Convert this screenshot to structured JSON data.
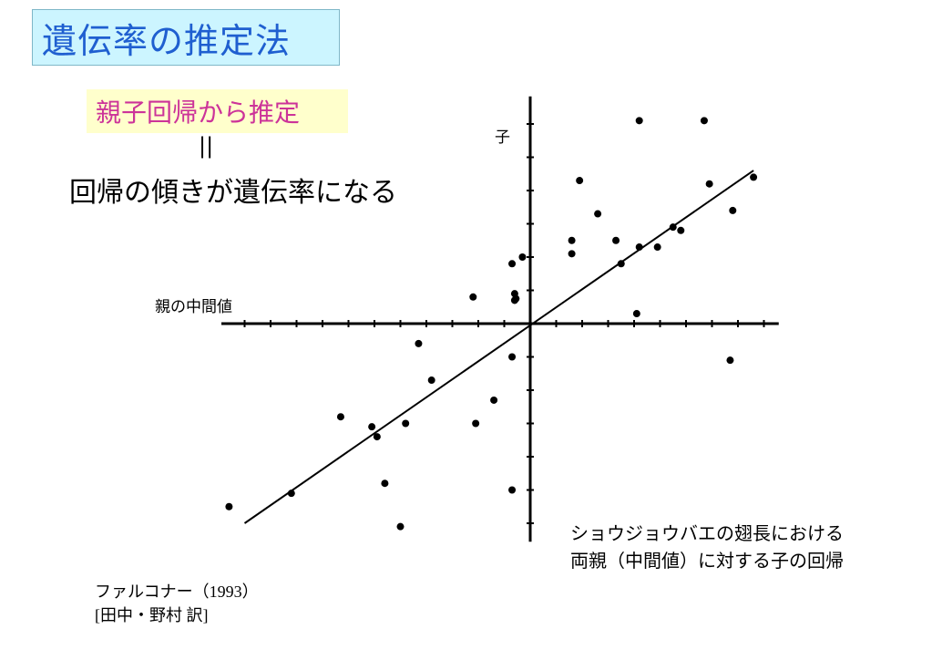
{
  "slide": {
    "title": "遺伝率の推定法",
    "subtitle": "親子回帰から推定",
    "equals_sign": "||",
    "statement": "回帰の傾きが遺伝率になる",
    "caption_lines": [
      "ショウジョウバエの翅長における",
      "両親（中間値）に対する子の回帰"
    ],
    "source_lines": [
      "ファルコナー（1993）",
      "[田中・野村 訳]"
    ]
  },
  "colors": {
    "title_bg": "#ccf5ff",
    "title_text": "#1f5fd0",
    "subtitle_bg": "#ffffcc",
    "subtitle_text": "#cc3399"
  },
  "chart_data": {
    "type": "scatter",
    "xlabel": "親の中間値",
    "ylabel": "子",
    "xlim": [
      -12,
      9.5
    ],
    "ylim": [
      -6.5,
      6.5
    ],
    "grid": false,
    "x_ticks": [
      -11,
      -10,
      -9,
      -8,
      -7,
      -6,
      -5,
      -4,
      -3,
      -2,
      -1,
      1,
      2,
      3,
      4,
      5,
      6,
      7,
      8,
      9
    ],
    "y_ticks": [
      -6,
      -5,
      -4,
      -3,
      -2,
      -1,
      1,
      2,
      3,
      4,
      5,
      6
    ],
    "points": [
      {
        "x": -11.6,
        "y": -5.5
      },
      {
        "x": -9.2,
        "y": -5.1
      },
      {
        "x": -7.3,
        "y": -2.8
      },
      {
        "x": -6.1,
        "y": -3.1
      },
      {
        "x": -5.9,
        "y": -3.4
      },
      {
        "x": -5.6,
        "y": -4.8
      },
      {
        "x": -5.0,
        "y": -6.1
      },
      {
        "x": -4.8,
        "y": -3.0
      },
      {
        "x": -4.3,
        "y": -0.6
      },
      {
        "x": -3.8,
        "y": -1.7
      },
      {
        "x": -2.1,
        "y": -3.0
      },
      {
        "x": -1.4,
        "y": -2.3
      },
      {
        "x": -2.2,
        "y": 0.8
      },
      {
        "x": -0.7,
        "y": 1.8
      },
      {
        "x": -0.6,
        "y": 0.9
      },
      {
        "x": -0.6,
        "y": 0.7
      },
      {
        "x": -0.55,
        "y": 0.75
      },
      {
        "x": -0.3,
        "y": 2.0
      },
      {
        "x": -0.7,
        "y": -1.0
      },
      {
        "x": -0.7,
        "y": -5.0
      },
      {
        "x": 1.6,
        "y": 2.1
      },
      {
        "x": 1.6,
        "y": 2.5
      },
      {
        "x": 1.9,
        "y": 4.3
      },
      {
        "x": 2.6,
        "y": 3.3
      },
      {
        "x": 3.3,
        "y": 2.5
      },
      {
        "x": 3.5,
        "y": 1.8
      },
      {
        "x": 4.2,
        "y": 6.1
      },
      {
        "x": 4.2,
        "y": 2.3
      },
      {
        "x": 4.1,
        "y": 0.3
      },
      {
        "x": 4.9,
        "y": 2.3
      },
      {
        "x": 5.5,
        "y": 2.9
      },
      {
        "x": 5.8,
        "y": 2.8
      },
      {
        "x": 6.7,
        "y": 6.1
      },
      {
        "x": 6.9,
        "y": 4.2
      },
      {
        "x": 7.8,
        "y": 3.4
      },
      {
        "x": 7.7,
        "y": -1.1
      },
      {
        "x": 8.6,
        "y": 4.4
      }
    ],
    "regression_line": {
      "x": [
        -11.0,
        8.6
      ],
      "y": [
        -6.0,
        4.6
      ]
    }
  }
}
